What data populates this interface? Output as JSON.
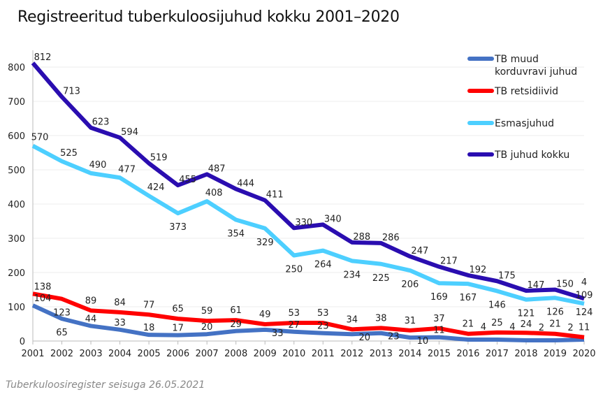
{
  "title": "Registreeritud tuberkuloosijuhud kokku 2001–2020",
  "footnote": "Tuberkuloosiregister seisuga 26.05.2021",
  "chart_data": {
    "type": "line",
    "title": "Registreeritud tuberkuloosijuhud kokku 2001–2020",
    "x": [
      2001,
      2002,
      2003,
      2004,
      2005,
      2006,
      2007,
      2008,
      2009,
      2010,
      2011,
      2012,
      2013,
      2014,
      2015,
      2016,
      2017,
      2018,
      2019,
      2020
    ],
    "ylim": [
      0,
      850
    ],
    "yticks": [
      0,
      100,
      200,
      300,
      400,
      500,
      600,
      700,
      800
    ],
    "grid": true,
    "legend_position": "top-right",
    "series": [
      {
        "name": "TB muud korduvravi juhud",
        "color": "#4472c4",
        "values": [
          104,
          65,
          44,
          33,
          18,
          17,
          20,
          29,
          33,
          27,
          23,
          20,
          23,
          10,
          11,
          4,
          4,
          2,
          2,
          4
        ]
      },
      {
        "name": "TB retsidiivid",
        "color": "#ff0000",
        "values": [
          138,
          123,
          89,
          84,
          77,
          65,
          59,
          61,
          49,
          53,
          53,
          34,
          38,
          31,
          37,
          21,
          25,
          24,
          21,
          11
        ]
      },
      {
        "name": "Esmasjuhud",
        "color": "#4dcfff",
        "values": [
          570,
          525,
          490,
          477,
          424,
          373,
          408,
          354,
          329,
          250,
          264,
          234,
          225,
          206,
          169,
          167,
          146,
          121,
          126,
          109
        ]
      },
      {
        "name": "TB juhud kokku",
        "color": "#2a0db0",
        "values": [
          812,
          713,
          623,
          594,
          519,
          455,
          487,
          444,
          411,
          330,
          340,
          288,
          286,
          247,
          217,
          192,
          175,
          147,
          150,
          124
        ]
      }
    ]
  }
}
